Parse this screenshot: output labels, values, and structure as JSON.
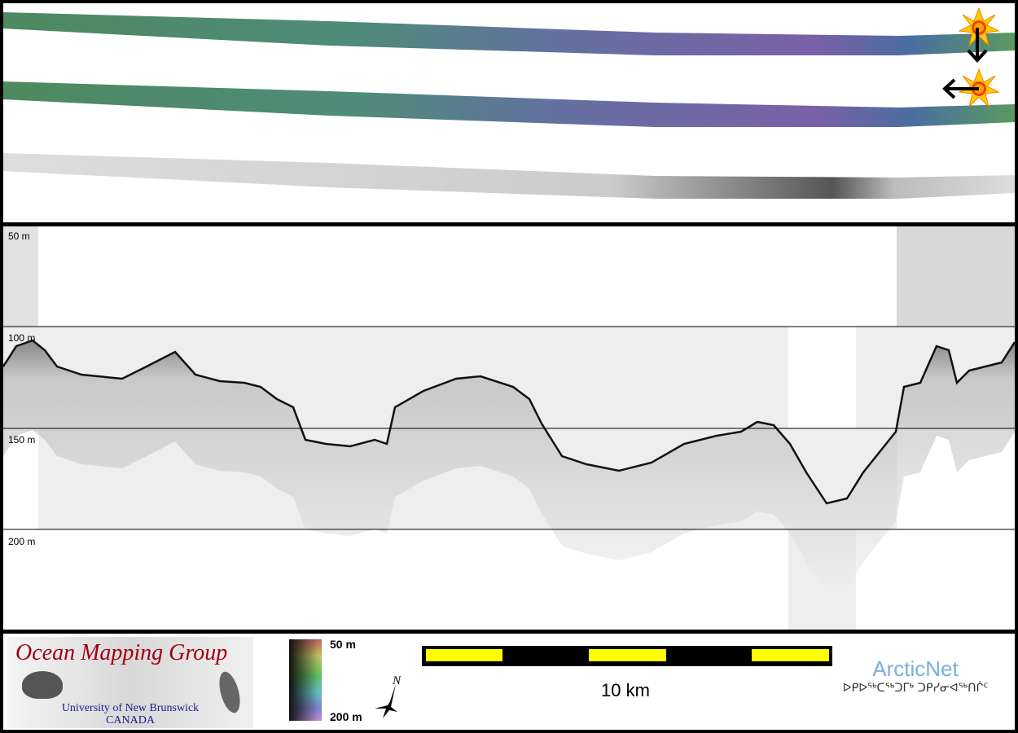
{
  "depth_labels": [
    "50 m",
    "100 m",
    "150 m",
    "200 m"
  ],
  "logo_omg": {
    "title": "Ocean Mapping Group",
    "line1": "University of New Brunswick",
    "line2": "CANADA"
  },
  "colorbar": {
    "top_label": "50 m",
    "bottom_label": "200 m"
  },
  "compass": {
    "label": "N"
  },
  "scalebar": {
    "label": "10 km",
    "colors": {
      "bar": "#000000",
      "segment": "#ffff00"
    }
  },
  "arcticnet": {
    "name": "ArcticNet",
    "syllabics": "ᐅᑭᐅᖅᑕᖅᑐᒥᒃ ᑐᑭᓯᓂᐊᖅᑎᒌᑦ"
  },
  "colors": {
    "title_red": "#a00010",
    "unb_blue": "#1a1a8a",
    "arcticnet_blue": "#7aaedc"
  },
  "icons": [
    "sun-illumination-icon-north",
    "sun-illumination-icon-east",
    "arrow-down-icon",
    "arrow-left-icon",
    "north-arrow-icon"
  ]
}
